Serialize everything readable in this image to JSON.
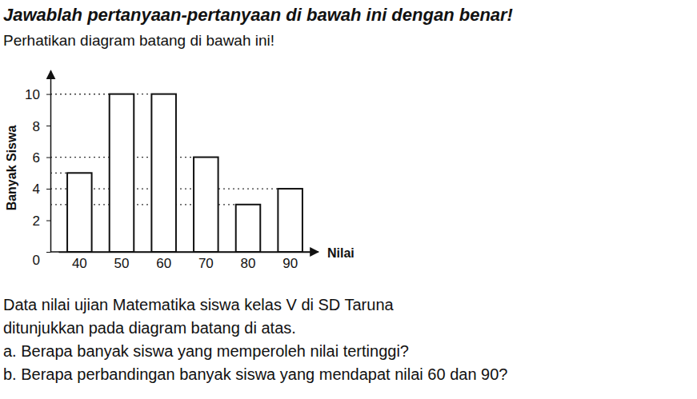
{
  "document": {
    "heading": "Jawablah pertanyaan-pertanyaan di bawah ini dengan benar!",
    "instruction": "Perhatikan diagram batang di bawah ini!",
    "paragraph": [
      "Data nilai ujian Matematika siswa kelas V di SD Taruna",
      "ditunjukkan pada diagram batang di atas."
    ],
    "questions": [
      "a.  Berapa banyak siswa yang memperoleh nilai tertinggi?",
      "b.  Berapa perbandingan banyak siswa yang mendapat nilai 60 dan 90?"
    ]
  },
  "chart_data": {
    "type": "bar",
    "x_label": "Nilai",
    "y_label": "Banyak Siswa",
    "categories": [
      "40",
      "50",
      "60",
      "70",
      "80",
      "90"
    ],
    "values": [
      5,
      10,
      10,
      6,
      3,
      4
    ],
    "color": "#ffffff",
    "ylim": [
      0,
      11.5
    ],
    "yticks": [
      0,
      2,
      4,
      6,
      8,
      10
    ],
    "grid": false
  }
}
